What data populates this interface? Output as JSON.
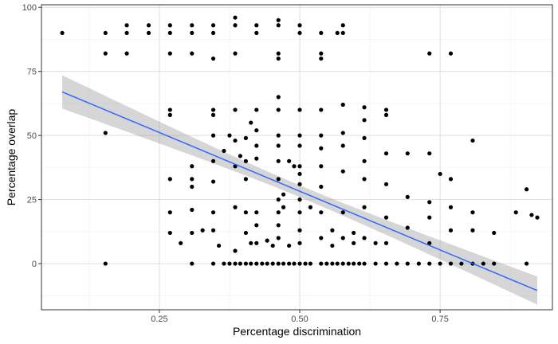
{
  "chart_data": {
    "type": "scatter",
    "xlabel": "Percentage discrimination",
    "ylabel": "Percentage overlap",
    "xlim": [
      0.04,
      0.95
    ],
    "ylim": [
      -18,
      101
    ],
    "xticks": [
      0.25,
      0.5,
      0.75
    ],
    "xtick_labels": [
      "0.25",
      "0.50",
      "0.75"
    ],
    "yticks": [
      0,
      25,
      50,
      75,
      100
    ],
    "ytick_labels": [
      "0",
      "25",
      "50",
      "75",
      "100"
    ],
    "grid": true,
    "theme": "light",
    "points": [
      [
        0.077,
        90
      ],
      [
        0.154,
        90
      ],
      [
        0.154,
        82
      ],
      [
        0.154,
        51
      ],
      [
        0.154,
        0
      ],
      [
        0.192,
        93
      ],
      [
        0.192,
        90
      ],
      [
        0.192,
        82
      ],
      [
        0.231,
        93
      ],
      [
        0.231,
        90
      ],
      [
        0.269,
        93
      ],
      [
        0.269,
        90
      ],
      [
        0.269,
        82
      ],
      [
        0.269,
        60
      ],
      [
        0.269,
        58
      ],
      [
        0.269,
        33
      ],
      [
        0.269,
        20
      ],
      [
        0.269,
        12
      ],
      [
        0.288,
        8
      ],
      [
        0.308,
        93
      ],
      [
        0.308,
        90
      ],
      [
        0.308,
        82
      ],
      [
        0.308,
        38
      ],
      [
        0.308,
        33
      ],
      [
        0.308,
        30
      ],
      [
        0.308,
        21
      ],
      [
        0.308,
        12
      ],
      [
        0.308,
        0
      ],
      [
        0.327,
        13
      ],
      [
        0.346,
        93
      ],
      [
        0.346,
        90
      ],
      [
        0.346,
        80
      ],
      [
        0.346,
        60
      ],
      [
        0.346,
        58
      ],
      [
        0.346,
        50
      ],
      [
        0.346,
        40
      ],
      [
        0.346,
        32
      ],
      [
        0.346,
        20
      ],
      [
        0.346,
        13
      ],
      [
        0.346,
        0
      ],
      [
        0.356,
        7
      ],
      [
        0.365,
        44
      ],
      [
        0.365,
        0
      ],
      [
        0.375,
        50
      ],
      [
        0.375,
        0
      ],
      [
        0.385,
        96
      ],
      [
        0.385,
        93
      ],
      [
        0.385,
        82
      ],
      [
        0.385,
        60
      ],
      [
        0.385,
        48
      ],
      [
        0.385,
        38
      ],
      [
        0.385,
        22
      ],
      [
        0.385,
        5
      ],
      [
        0.385,
        0
      ],
      [
        0.394,
        42
      ],
      [
        0.394,
        0
      ],
      [
        0.404,
        49
      ],
      [
        0.404,
        40
      ],
      [
        0.404,
        33
      ],
      [
        0.404,
        20
      ],
      [
        0.404,
        12
      ],
      [
        0.404,
        0
      ],
      [
        0.413,
        55
      ],
      [
        0.413,
        8
      ],
      [
        0.413,
        0
      ],
      [
        0.423,
        93
      ],
      [
        0.423,
        90
      ],
      [
        0.423,
        60
      ],
      [
        0.423,
        52
      ],
      [
        0.423,
        46
      ],
      [
        0.423,
        41
      ],
      [
        0.423,
        20
      ],
      [
        0.423,
        15
      ],
      [
        0.423,
        8
      ],
      [
        0.423,
        0
      ],
      [
        0.433,
        0
      ],
      [
        0.442,
        9
      ],
      [
        0.442,
        0
      ],
      [
        0.452,
        7
      ],
      [
        0.452,
        0
      ],
      [
        0.462,
        95
      ],
      [
        0.462,
        93
      ],
      [
        0.462,
        82
      ],
      [
        0.462,
        80
      ],
      [
        0.462,
        65
      ],
      [
        0.462,
        60
      ],
      [
        0.462,
        50
      ],
      [
        0.462,
        46
      ],
      [
        0.462,
        40
      ],
      [
        0.462,
        33
      ],
      [
        0.462,
        25
      ],
      [
        0.462,
        20
      ],
      [
        0.462,
        15
      ],
      [
        0.462,
        10
      ],
      [
        0.462,
        0
      ],
      [
        0.471,
        27
      ],
      [
        0.471,
        22
      ],
      [
        0.471,
        0
      ],
      [
        0.481,
        40
      ],
      [
        0.481,
        7
      ],
      [
        0.481,
        0
      ],
      [
        0.49,
        38
      ],
      [
        0.49,
        0
      ],
      [
        0.5,
        93
      ],
      [
        0.5,
        90
      ],
      [
        0.5,
        60
      ],
      [
        0.5,
        50
      ],
      [
        0.5,
        46
      ],
      [
        0.5,
        38
      ],
      [
        0.5,
        35
      ],
      [
        0.5,
        31
      ],
      [
        0.5,
        25
      ],
      [
        0.5,
        20
      ],
      [
        0.5,
        13
      ],
      [
        0.5,
        8
      ],
      [
        0.5,
        0
      ],
      [
        0.51,
        0
      ],
      [
        0.519,
        22
      ],
      [
        0.519,
        0
      ],
      [
        0.538,
        90
      ],
      [
        0.538,
        82
      ],
      [
        0.538,
        80
      ],
      [
        0.538,
        60
      ],
      [
        0.538,
        50
      ],
      [
        0.538,
        45
      ],
      [
        0.538,
        38
      ],
      [
        0.538,
        30
      ],
      [
        0.538,
        20
      ],
      [
        0.538,
        10
      ],
      [
        0.538,
        0
      ],
      [
        0.548,
        0
      ],
      [
        0.558,
        13
      ],
      [
        0.558,
        7
      ],
      [
        0.558,
        0
      ],
      [
        0.567,
        90
      ],
      [
        0.567,
        0
      ],
      [
        0.577,
        93
      ],
      [
        0.577,
        90
      ],
      [
        0.577,
        62
      ],
      [
        0.577,
        51
      ],
      [
        0.577,
        46
      ],
      [
        0.577,
        36
      ],
      [
        0.577,
        20
      ],
      [
        0.577,
        10
      ],
      [
        0.577,
        0
      ],
      [
        0.587,
        0
      ],
      [
        0.596,
        12
      ],
      [
        0.596,
        8
      ],
      [
        0.596,
        0
      ],
      [
        0.606,
        0
      ],
      [
        0.615,
        61
      ],
      [
        0.615,
        56
      ],
      [
        0.615,
        49
      ],
      [
        0.615,
        40
      ],
      [
        0.615,
        33
      ],
      [
        0.615,
        22
      ],
      [
        0.615,
        10
      ],
      [
        0.615,
        0
      ],
      [
        0.635,
        8
      ],
      [
        0.635,
        0
      ],
      [
        0.654,
        60
      ],
      [
        0.654,
        58
      ],
      [
        0.654,
        43
      ],
      [
        0.654,
        31
      ],
      [
        0.654,
        18
      ],
      [
        0.654,
        8
      ],
      [
        0.654,
        0
      ],
      [
        0.673,
        0
      ],
      [
        0.692,
        43
      ],
      [
        0.692,
        26
      ],
      [
        0.692,
        14
      ],
      [
        0.692,
        0
      ],
      [
        0.712,
        0
      ],
      [
        0.731,
        82
      ],
      [
        0.731,
        43
      ],
      [
        0.731,
        24
      ],
      [
        0.731,
        18
      ],
      [
        0.731,
        8
      ],
      [
        0.731,
        0
      ],
      [
        0.75,
        35
      ],
      [
        0.75,
        0
      ],
      [
        0.769,
        82
      ],
      [
        0.769,
        33
      ],
      [
        0.769,
        22
      ],
      [
        0.769,
        13
      ],
      [
        0.769,
        0
      ],
      [
        0.788,
        0
      ],
      [
        0.808,
        48
      ],
      [
        0.808,
        20
      ],
      [
        0.808,
        13
      ],
      [
        0.808,
        0
      ],
      [
        0.827,
        0
      ],
      [
        0.846,
        12
      ],
      [
        0.846,
        0
      ],
      [
        0.885,
        20
      ],
      [
        0.904,
        0
      ],
      [
        0.904,
        29
      ],
      [
        0.913,
        19
      ],
      [
        0.923,
        18
      ]
    ],
    "series": [
      {
        "type": "point",
        "color": "#000000"
      },
      {
        "type": "smooth",
        "method": "lm",
        "color": "#3366FF",
        "band_color": "#999999",
        "line": [
          [
            0.077,
            67
          ],
          [
            0.923,
            -10.5
          ]
        ],
        "band_halfwidth_ends": [
          6.5,
          5.5
        ],
        "band_halfwidth_center": 2.3
      }
    ]
  }
}
